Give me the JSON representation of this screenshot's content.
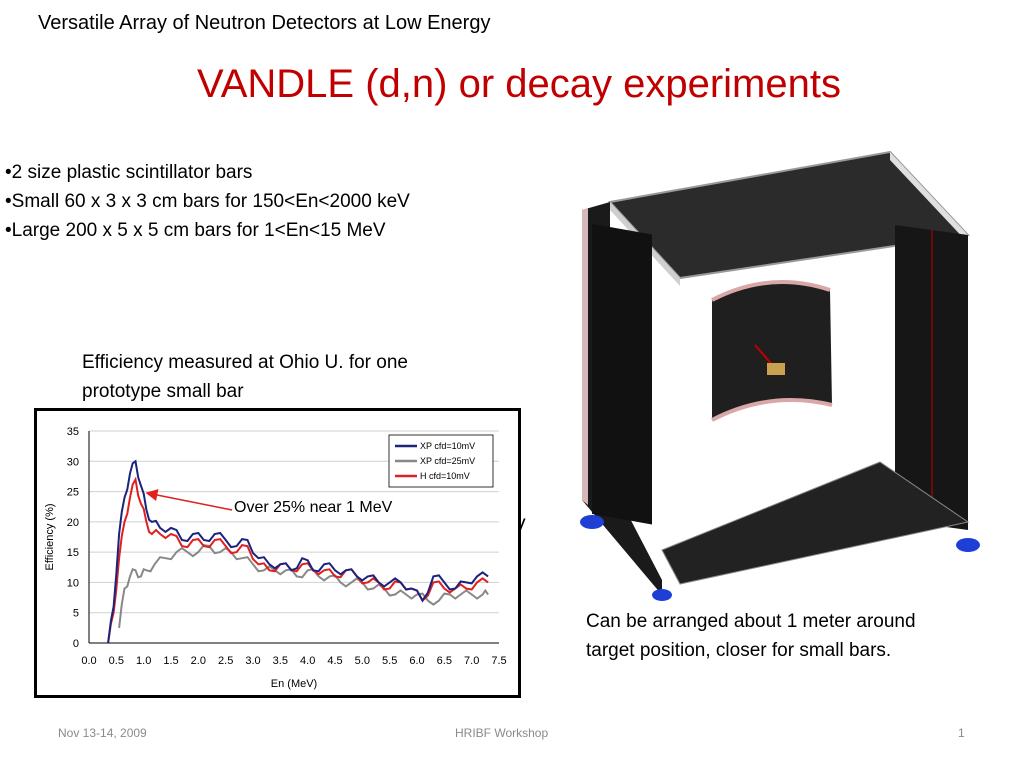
{
  "slide": {
    "header": "Versatile Array of Neutron Detectors at Low Energy",
    "title": "VANDLE (d,n) or decay experiments",
    "bullets": [
      "•2 size plastic scintillator bars",
      "•Small 60 x 3 x 3 cm bars for 150<En<2000 keV",
      "•Large 200 x 5 x 5 cm bars for 1<En<15 MeV"
    ],
    "efficiency_note": "Efficiency measured at Ohio U. for one prototype small bar",
    "clipped_text": "V",
    "arrangement_note": "Can be arranged about 1 meter around target position, closer for small bars.",
    "footer": {
      "date": "Nov 13-14, 2009",
      "event": "HRIBF Workshop",
      "page": "1"
    }
  },
  "chart_data": {
    "type": "line",
    "xlabel": "En (MeV)",
    "ylabel": "Efficiency (%)",
    "xlim": [
      0.0,
      7.5
    ],
    "ylim": [
      0,
      35
    ],
    "x_ticks": [
      "0.0",
      "0.5",
      "1.0",
      "1.5",
      "2.0",
      "2.5",
      "3.0",
      "3.5",
      "4.0",
      "4.5",
      "5.0",
      "5.5",
      "6.0",
      "6.5",
      "7.0",
      "7.5"
    ],
    "y_ticks": [
      "0",
      "5",
      "10",
      "15",
      "20",
      "25",
      "30",
      "35"
    ],
    "legend_position": "top-right",
    "annotation": "Over 25% near 1 MeV",
    "annotation_target": [
      0.9,
      25
    ],
    "series": [
      {
        "name": "XP cfd=10mV",
        "color": "#1a237e",
        "x": [
          0.35,
          0.45,
          0.55,
          0.65,
          0.75,
          0.85,
          0.95,
          1.05,
          1.15,
          1.3,
          1.5,
          1.7,
          1.9,
          2.1,
          2.3,
          2.5,
          2.7,
          2.9,
          3.1,
          3.3,
          3.5,
          3.7,
          3.9,
          4.1,
          4.3,
          4.5,
          4.7,
          4.9,
          5.1,
          5.3,
          5.5,
          5.7,
          5.9,
          6.1,
          6.3,
          6.5,
          6.7,
          6.9,
          7.1,
          7.3
        ],
        "y": [
          0,
          6,
          18,
          24,
          28,
          30,
          26,
          22,
          20,
          19,
          19,
          17,
          18,
          17,
          18,
          17,
          16,
          17,
          14,
          13,
          13,
          12,
          14,
          12,
          13,
          12,
          12,
          11,
          11,
          10,
          10,
          10,
          9,
          7,
          11,
          10,
          9,
          10,
          11,
          11
        ]
      },
      {
        "name": "XP cfd=25mV",
        "color": "#888888",
        "x": [
          0.55,
          0.65,
          0.75,
          0.85,
          0.95,
          1.05,
          1.2,
          1.4,
          1.6,
          1.8,
          2.0,
          2.2,
          2.4,
          2.6,
          2.8,
          3.0,
          3.2,
          3.4,
          3.6,
          3.8,
          4.0,
          4.2,
          4.4,
          4.6,
          4.8,
          5.0,
          5.2,
          5.4,
          5.6,
          5.8,
          6.0,
          6.2,
          6.4,
          6.6,
          6.8,
          7.0,
          7.2,
          7.3
        ],
        "y": [
          2.5,
          9,
          11,
          12,
          11,
          12,
          13,
          14,
          15,
          15,
          15,
          16,
          15,
          15,
          14,
          13,
          12,
          12,
          12,
          11,
          12,
          11,
          11,
          10,
          10,
          10,
          9,
          9,
          8,
          8,
          8,
          7,
          7,
          8,
          8,
          8,
          8,
          8
        ]
      },
      {
        "name": "H  cfd=10mV",
        "color": "#e02020",
        "x": [
          0.35,
          0.45,
          0.55,
          0.65,
          0.75,
          0.85,
          0.95,
          1.05,
          1.15,
          1.3,
          1.5,
          1.7,
          1.9,
          2.1,
          2.3,
          2.5,
          2.7,
          2.9,
          3.1,
          3.3,
          3.5,
          3.7,
          3.9,
          4.1,
          4.3,
          4.5,
          4.7,
          4.9,
          5.1,
          5.3,
          5.5,
          5.7,
          5.9,
          6.1,
          6.3,
          6.5,
          6.7,
          6.9,
          7.1,
          7.3
        ],
        "y": [
          0,
          5,
          14,
          20,
          24,
          27,
          23,
          20,
          18,
          18,
          18,
          16,
          17,
          16,
          17,
          16,
          15,
          16,
          13,
          12,
          13,
          12,
          13,
          12,
          12,
          11,
          12,
          11,
          10,
          10,
          9,
          10,
          9,
          7,
          10,
          9,
          9,
          9,
          10,
          10
        ]
      }
    ]
  }
}
